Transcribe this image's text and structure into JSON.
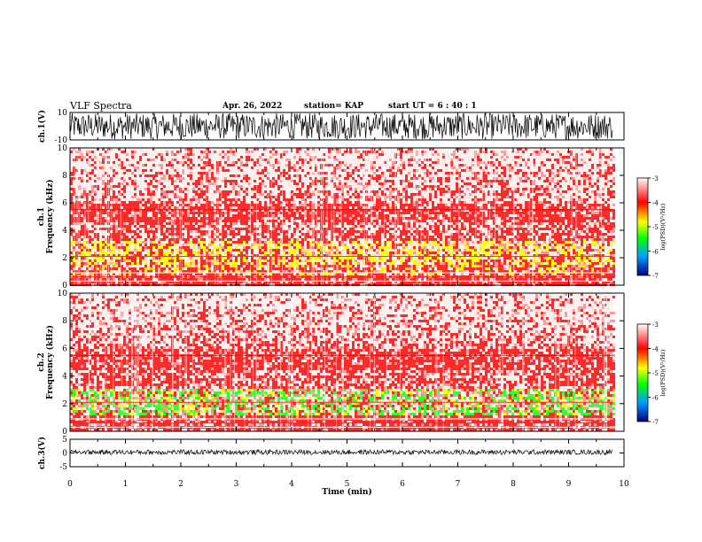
{
  "header": {
    "title": "VLF Spectra",
    "date": "Apr. 26, 2022",
    "station": "station= KAP",
    "start_ut": "start UT =  6 : 40 : 1"
  },
  "chart_data": [
    {
      "type": "line",
      "panel": "waveform-ch1",
      "ylabel": "ch.1(V)",
      "ylim": [
        -10,
        10
      ],
      "yticks": [
        10,
        -10
      ],
      "xlim": [
        0,
        10
      ],
      "note_data": "dense noise waveform spanning approximately -10 to 10 V"
    },
    {
      "type": "heatmap",
      "panel": "spectrogram-ch1",
      "ylabel_lines": [
        "ch.1",
        "Frequency  (kHz)"
      ],
      "ylim": [
        0,
        10
      ],
      "yticks": [
        0,
        2,
        4,
        6,
        8,
        10
      ],
      "xlim": [
        0,
        10
      ],
      "data_end_min": 9.8,
      "colorbar": {
        "ticks": [
          -3,
          -4,
          -5,
          -6,
          -7
        ],
        "label": "log(PSD)(V²/Hz)"
      }
    },
    {
      "type": "heatmap",
      "panel": "spectrogram-ch2",
      "ylabel_lines": [
        "ch.2",
        "Frequency  (kHz)"
      ],
      "ylim": [
        0,
        10
      ],
      "yticks": [
        0,
        2,
        4,
        6,
        8,
        10
      ],
      "xlim": [
        0,
        10
      ],
      "data_end_min": 9.8,
      "colorbar": {
        "ticks": [
          -3,
          -4,
          -5,
          -6,
          -7
        ],
        "label": "log(PSD)(V²/Hz)"
      }
    },
    {
      "type": "line",
      "panel": "waveform-ch3",
      "ylabel": "ch.3(V)",
      "ylim": [
        -5,
        5
      ],
      "yticks": [
        5,
        0,
        -5
      ],
      "xlim": [
        0,
        10
      ],
      "mean_level": 0.3
    }
  ],
  "xaxis": {
    "label": "Time  (min)",
    "ticks": [
      0,
      1,
      2,
      3,
      4,
      5,
      6,
      7,
      8,
      9,
      10
    ]
  },
  "colors": {
    "red": "#ff2020",
    "yellow": "#ffff00",
    "green": "#30ff30"
  }
}
